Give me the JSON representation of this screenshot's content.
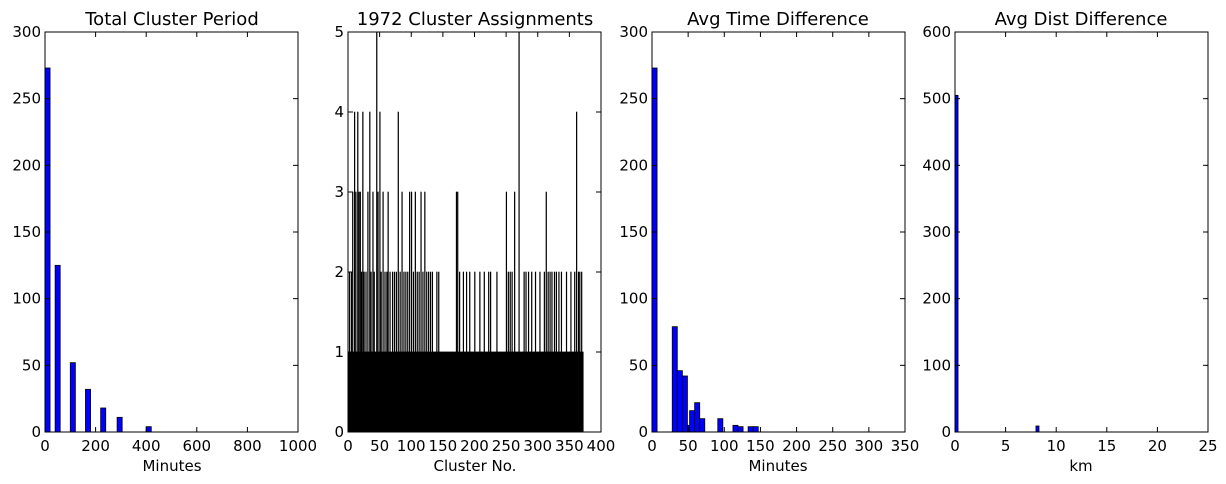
{
  "chart_data": [
    {
      "type": "bar",
      "title": "Total Cluster Period",
      "xlabel": "Minutes",
      "ylabel": "",
      "xlim": [
        0,
        1000
      ],
      "ylim": [
        0,
        300
      ],
      "xticks": [
        0,
        200,
        400,
        600,
        800,
        1000
      ],
      "yticks": [
        0,
        50,
        100,
        150,
        200,
        250,
        300
      ],
      "bar_color": "#0000ff",
      "bars": [
        {
          "x": 0,
          "width": 20,
          "value": 273
        },
        {
          "x": 40,
          "width": 20,
          "value": 125
        },
        {
          "x": 100,
          "width": 20,
          "value": 52
        },
        {
          "x": 160,
          "width": 20,
          "value": 32
        },
        {
          "x": 220,
          "width": 20,
          "value": 18
        },
        {
          "x": 285,
          "width": 20,
          "value": 11
        },
        {
          "x": 400,
          "width": 20,
          "value": 4
        }
      ]
    },
    {
      "type": "bar",
      "title": "1972 Cluster Assignments",
      "xlabel": "Cluster No.",
      "ylabel": "",
      "xlim": [
        0,
        400
      ],
      "ylim": [
        0,
        5
      ],
      "xticks": [
        0,
        50,
        100,
        150,
        200,
        250,
        300,
        350,
        400
      ],
      "yticks": [
        0,
        1,
        2,
        3,
        4,
        5
      ],
      "bar_color": "#000000",
      "n_clusters": 372,
      "base_value": 1,
      "peaks": [
        {
          "x": 2,
          "value": 2
        },
        {
          "x": 5,
          "value": 2
        },
        {
          "x": 7,
          "value": 3
        },
        {
          "x": 10,
          "value": 4
        },
        {
          "x": 12,
          "value": 3
        },
        {
          "x": 15,
          "value": 4
        },
        {
          "x": 17,
          "value": 3
        },
        {
          "x": 19,
          "value": 3
        },
        {
          "x": 21,
          "value": 2
        },
        {
          "x": 23,
          "value": 4
        },
        {
          "x": 25,
          "value": 2
        },
        {
          "x": 28,
          "value": 2
        },
        {
          "x": 31,
          "value": 3
        },
        {
          "x": 34,
          "value": 4
        },
        {
          "x": 36,
          "value": 2
        },
        {
          "x": 39,
          "value": 3
        },
        {
          "x": 41,
          "value": 2
        },
        {
          "x": 45,
          "value": 5
        },
        {
          "x": 47,
          "value": 3
        },
        {
          "x": 50,
          "value": 4
        },
        {
          "x": 52,
          "value": 2
        },
        {
          "x": 55,
          "value": 3
        },
        {
          "x": 58,
          "value": 2
        },
        {
          "x": 61,
          "value": 2
        },
        {
          "x": 63,
          "value": 3
        },
        {
          "x": 66,
          "value": 2
        },
        {
          "x": 70,
          "value": 2
        },
        {
          "x": 73,
          "value": 2
        },
        {
          "x": 76,
          "value": 2
        },
        {
          "x": 79,
          "value": 4
        },
        {
          "x": 82,
          "value": 2
        },
        {
          "x": 85,
          "value": 3
        },
        {
          "x": 88,
          "value": 2
        },
        {
          "x": 91,
          "value": 2
        },
        {
          "x": 94,
          "value": 2
        },
        {
          "x": 97,
          "value": 3
        },
        {
          "x": 100,
          "value": 3
        },
        {
          "x": 103,
          "value": 2
        },
        {
          "x": 106,
          "value": 3
        },
        {
          "x": 109,
          "value": 2
        },
        {
          "x": 112,
          "value": 2
        },
        {
          "x": 115,
          "value": 3
        },
        {
          "x": 118,
          "value": 2
        },
        {
          "x": 121,
          "value": 3
        },
        {
          "x": 124,
          "value": 2
        },
        {
          "x": 127,
          "value": 2
        },
        {
          "x": 130,
          "value": 2
        },
        {
          "x": 133,
          "value": 2
        },
        {
          "x": 140,
          "value": 2
        },
        {
          "x": 143,
          "value": 2
        },
        {
          "x": 171,
          "value": 3
        },
        {
          "x": 173,
          "value": 3
        },
        {
          "x": 176,
          "value": 2
        },
        {
          "x": 182,
          "value": 2
        },
        {
          "x": 187,
          "value": 2
        },
        {
          "x": 192,
          "value": 2
        },
        {
          "x": 200,
          "value": 2
        },
        {
          "x": 208,
          "value": 2
        },
        {
          "x": 215,
          "value": 2
        },
        {
          "x": 222,
          "value": 2
        },
        {
          "x": 225,
          "value": 2
        },
        {
          "x": 235,
          "value": 2
        },
        {
          "x": 250,
          "value": 3
        },
        {
          "x": 253,
          "value": 2
        },
        {
          "x": 256,
          "value": 2
        },
        {
          "x": 259,
          "value": 2
        },
        {
          "x": 263,
          "value": 3
        },
        {
          "x": 270,
          "value": 5
        },
        {
          "x": 278,
          "value": 2
        },
        {
          "x": 281,
          "value": 2
        },
        {
          "x": 285,
          "value": 2
        },
        {
          "x": 290,
          "value": 2
        },
        {
          "x": 296,
          "value": 2
        },
        {
          "x": 303,
          "value": 2
        },
        {
          "x": 310,
          "value": 2
        },
        {
          "x": 313,
          "value": 3
        },
        {
          "x": 316,
          "value": 2
        },
        {
          "x": 319,
          "value": 2
        },
        {
          "x": 322,
          "value": 2
        },
        {
          "x": 326,
          "value": 2
        },
        {
          "x": 329,
          "value": 2
        },
        {
          "x": 333,
          "value": 2
        },
        {
          "x": 337,
          "value": 2
        },
        {
          "x": 345,
          "value": 2
        },
        {
          "x": 352,
          "value": 2
        },
        {
          "x": 358,
          "value": 2
        },
        {
          "x": 361,
          "value": 4
        },
        {
          "x": 364,
          "value": 2
        },
        {
          "x": 366,
          "value": 2
        },
        {
          "x": 369,
          "value": 2
        }
      ]
    },
    {
      "type": "bar",
      "title": "Avg Time Difference",
      "xlabel": "Minutes",
      "ylabel": "",
      "xlim": [
        0,
        350
      ],
      "ylim": [
        0,
        300
      ],
      "xticks": [
        0,
        50,
        100,
        150,
        200,
        250,
        300,
        350
      ],
      "yticks": [
        0,
        50,
        100,
        150,
        200,
        250,
        300
      ],
      "bar_color": "#0000ff",
      "bars": [
        {
          "x": 0,
          "width": 7,
          "value": 273
        },
        {
          "x": 28,
          "width": 7,
          "value": 79
        },
        {
          "x": 35,
          "width": 7,
          "value": 46
        },
        {
          "x": 42,
          "width": 7,
          "value": 42
        },
        {
          "x": 49,
          "width": 7,
          "value": 5
        },
        {
          "x": 52,
          "width": 7,
          "value": 16
        },
        {
          "x": 59,
          "width": 7,
          "value": 22
        },
        {
          "x": 66,
          "width": 7,
          "value": 10
        },
        {
          "x": 91,
          "width": 7,
          "value": 10
        },
        {
          "x": 112,
          "width": 7,
          "value": 5
        },
        {
          "x": 119,
          "width": 7,
          "value": 4
        },
        {
          "x": 133,
          "width": 7,
          "value": 4
        },
        {
          "x": 140,
          "width": 7,
          "value": 4
        }
      ]
    },
    {
      "type": "bar",
      "title": "Avg Dist Difference",
      "xlabel": "km",
      "ylabel": "",
      "xlim": [
        0,
        25
      ],
      "ylim": [
        0,
        600
      ],
      "xticks": [
        0,
        5,
        10,
        15,
        20,
        25
      ],
      "yticks": [
        0,
        100,
        200,
        300,
        400,
        500,
        600
      ],
      "bar_color": "#0000ff",
      "bars": [
        {
          "x": 0,
          "width": 0.3,
          "value": 505
        },
        {
          "x": 8.0,
          "width": 0.3,
          "value": 9
        }
      ]
    }
  ]
}
